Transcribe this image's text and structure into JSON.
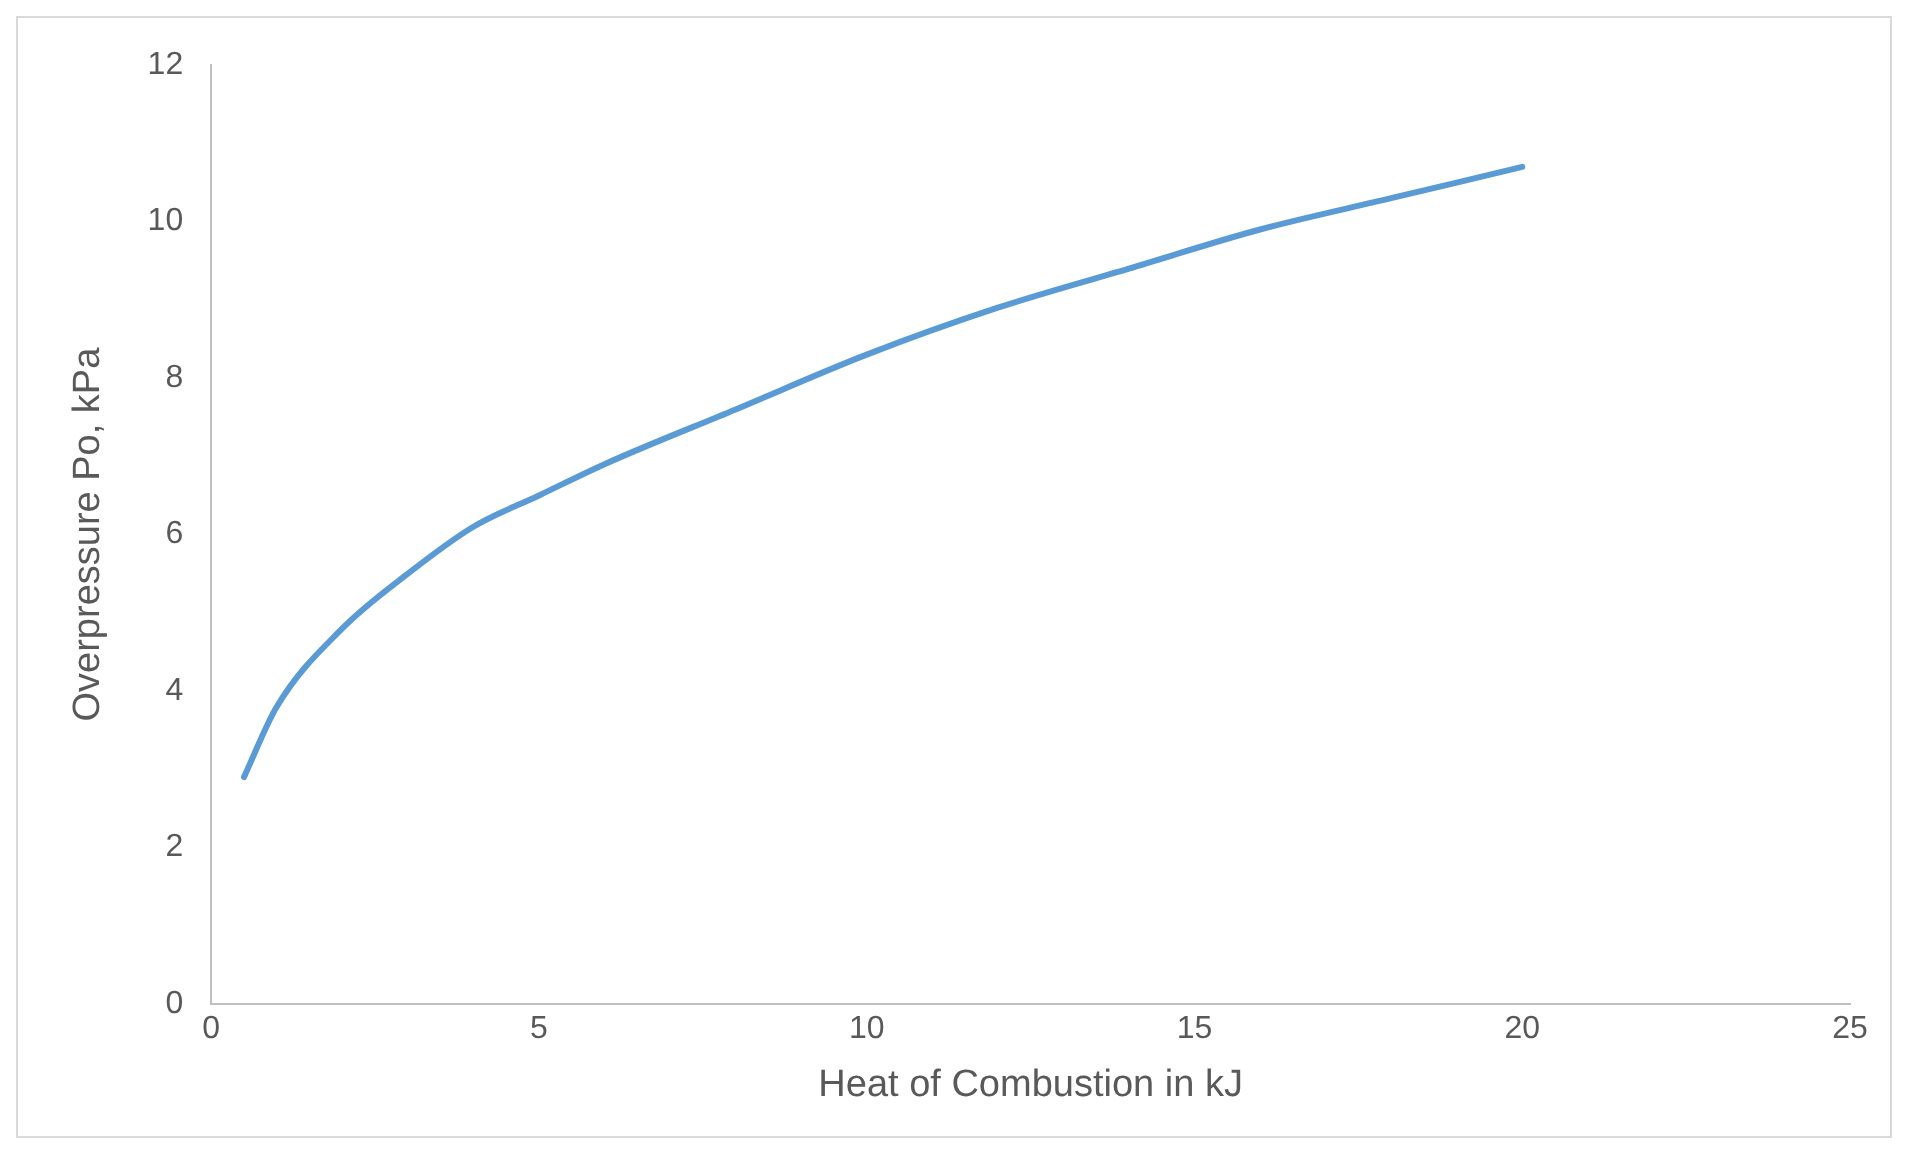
{
  "chart_data": {
    "type": "line",
    "xlabel": "Heat of Combustion in kJ",
    "ylabel": "Overpressure Po, kPa",
    "x": [
      0.5,
      1,
      2,
      3,
      4,
      5,
      6,
      8,
      10,
      12,
      14,
      16,
      18,
      20
    ],
    "series": [
      {
        "color": "#5b9bd5",
        "values": [
          2.9,
          3.8,
          4.8,
          5.5,
          6.1,
          6.5,
          6.9,
          7.6,
          8.3,
          8.9,
          9.4,
          9.9,
          10.3,
          10.7
        ]
      }
    ],
    "xlim": [
      0,
      25
    ],
    "xticks": [
      0,
      5,
      10,
      15,
      20,
      25
    ],
    "ylim": [
      0,
      12
    ],
    "yticks": [
      0,
      2,
      4,
      6,
      8,
      10,
      12
    ],
    "grid": false,
    "legend": false,
    "marker": "none",
    "line_style": "solid"
  }
}
